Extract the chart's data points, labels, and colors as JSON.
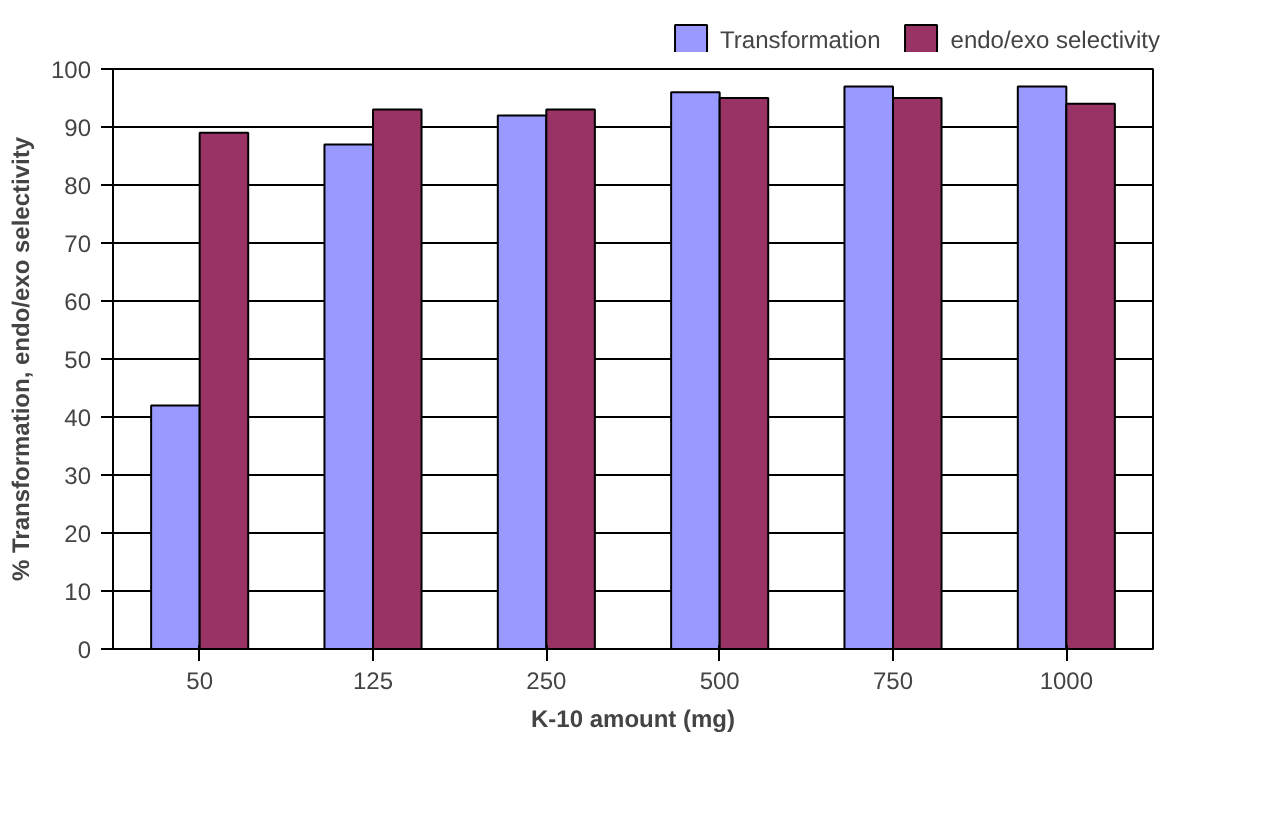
{
  "chart_data": {
    "type": "bar",
    "categories": [
      "50",
      "125",
      "250",
      "500",
      "750",
      "1000"
    ],
    "xlabel": "K-10 amount (mg)",
    "ylabel": "% Transformation, endo/exo selectivity",
    "series": [
      {
        "name": "Transformation",
        "color": "#9999ff",
        "values": [
          42,
          87,
          92,
          96,
          97,
          97
        ]
      },
      {
        "name": "endo/exo selectivity",
        "color": "#993366",
        "values": [
          89,
          93,
          93,
          95,
          95,
          94
        ]
      }
    ],
    "ylim": [
      0,
      100
    ],
    "yticks": [
      0,
      10,
      20,
      30,
      40,
      50,
      60,
      70,
      80,
      90,
      100
    ],
    "grid": "y",
    "legend": "top right"
  }
}
